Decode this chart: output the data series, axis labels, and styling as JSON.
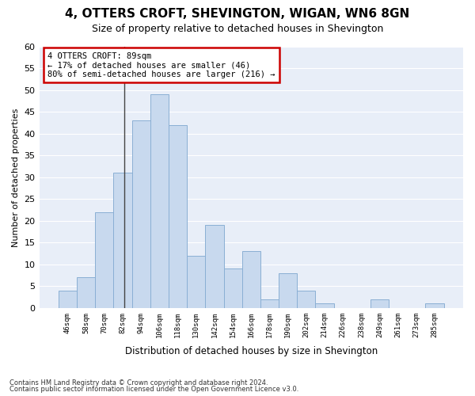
{
  "title": "4, OTTERS CROFT, SHEVINGTON, WIGAN, WN6 8GN",
  "subtitle": "Size of property relative to detached houses in Shevington",
  "xlabel": "Distribution of detached houses by size in Shevington",
  "ylabel": "Number of detached properties",
  "bar_labels": [
    "46sqm",
    "58sqm",
    "70sqm",
    "82sqm",
    "94sqm",
    "106sqm",
    "118sqm",
    "130sqm",
    "142sqm",
    "154sqm",
    "166sqm",
    "178sqm",
    "190sqm",
    "202sqm",
    "214sqm",
    "226sqm",
    "238sqm",
    "249sqm",
    "261sqm",
    "273sqm",
    "285sqm"
  ],
  "bar_values": [
    4,
    7,
    22,
    31,
    43,
    49,
    42,
    12,
    19,
    9,
    13,
    2,
    8,
    4,
    1,
    0,
    0,
    2,
    0,
    0,
    1
  ],
  "bar_color": "#c8d9ee",
  "bar_edge_color": "#8aafd4",
  "annotation_title": "4 OTTERS CROFT: 89sqm",
  "annotation_line1": "← 17% of detached houses are smaller (46)",
  "annotation_line2": "80% of semi-detached houses are larger (216) →",
  "annotation_box_color": "#cc0000",
  "ylim": [
    0,
    60
  ],
  "yticks": [
    0,
    5,
    10,
    15,
    20,
    25,
    30,
    35,
    40,
    45,
    50,
    55,
    60
  ],
  "footnote1": "Contains HM Land Registry data © Crown copyright and database right 2024.",
  "footnote2": "Contains public sector information licensed under the Open Government Licence v3.0.",
  "bg_color": "#ffffff",
  "plot_bg_color": "#e8eef8"
}
